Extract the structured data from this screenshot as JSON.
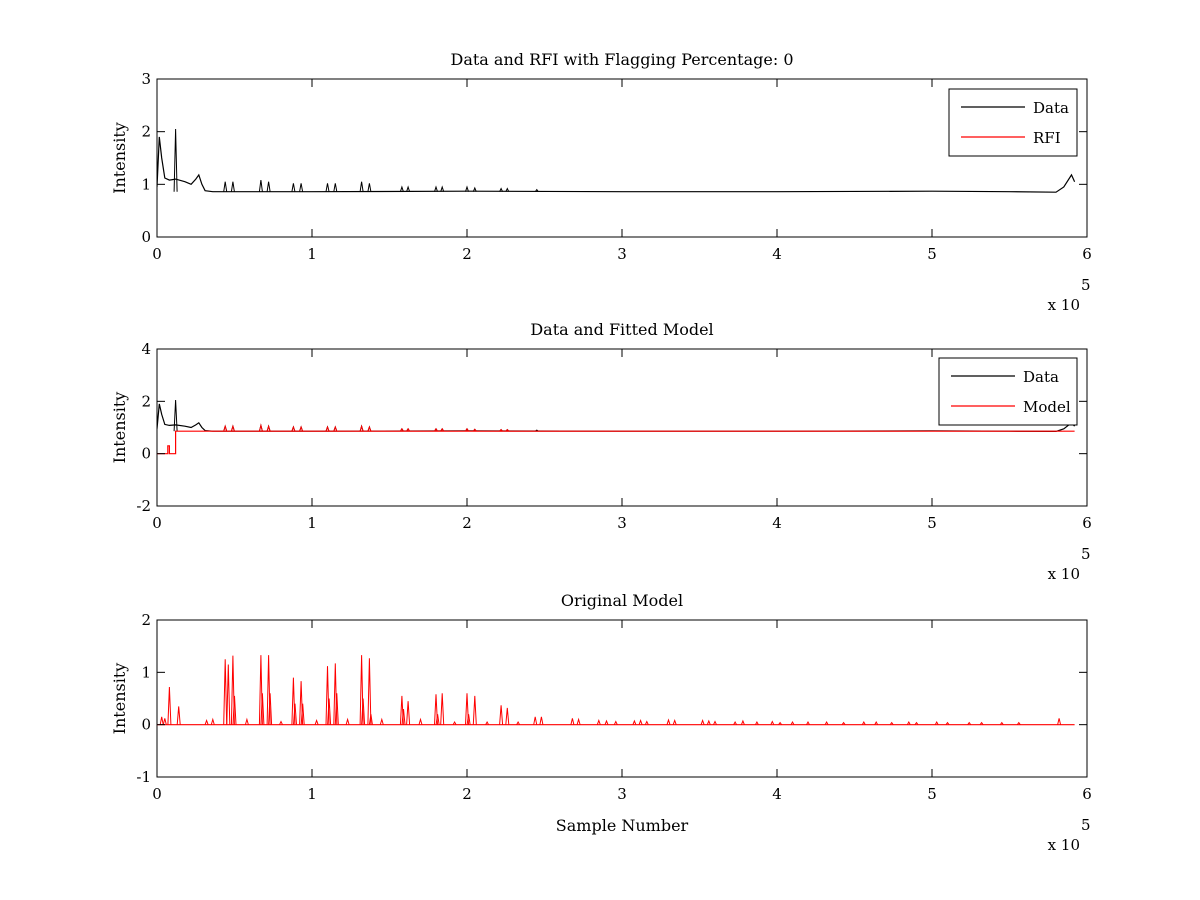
{
  "chart_data": [
    {
      "type": "line",
      "title": "Data and RFI with Flagging Percentage: 0",
      "xlabel": "",
      "ylabel": "Intensity",
      "xlim": [
        0,
        600000
      ],
      "ylim": [
        0,
        3
      ],
      "xticks": [
        "0",
        "1",
        "2",
        "3",
        "4",
        "5",
        "6"
      ],
      "yticks": [
        "0",
        "1",
        "2",
        "3"
      ],
      "x_multiplier": {
        "prefix": "x 10",
        "power": "5"
      },
      "legend_position": "top-right",
      "series": [
        {
          "name": "Data",
          "color": "#000000",
          "baseline": 0.86,
          "points": [
            [
              0,
              0.95
            ],
            [
              1500,
              1.9
            ],
            [
              3000,
              1.5
            ],
            [
              5000,
              1.12
            ],
            [
              8000,
              1.08
            ],
            [
              12000,
              1.1
            ],
            [
              18000,
              1.05
            ],
            [
              22000,
              1.0
            ],
            [
              25000,
              1.1
            ],
            [
              27000,
              1.18
            ],
            [
              29000,
              1.0
            ],
            [
              31000,
              0.88
            ],
            [
              36000,
              0.86
            ],
            [
              45000,
              0.86
            ],
            [
              100000,
              0.86
            ],
            [
              200000,
              0.87
            ],
            [
              300000,
              0.86
            ],
            [
              400000,
              0.86
            ],
            [
              500000,
              0.87
            ],
            [
              550000,
              0.86
            ],
            [
              580000,
              0.85
            ],
            [
              585000,
              0.95
            ],
            [
              590000,
              1.18
            ],
            [
              592000,
              1.05
            ]
          ],
          "spikes": [
            [
              12000,
              2.05
            ],
            [
              44000,
              1.05
            ],
            [
              49000,
              1.05
            ],
            [
              67000,
              1.08
            ],
            [
              72000,
              1.05
            ],
            [
              88000,
              1.02
            ],
            [
              93000,
              1.02
            ],
            [
              110000,
              1.02
            ],
            [
              115000,
              1.02
            ],
            [
              132000,
              1.05
            ],
            [
              137000,
              1.02
            ],
            [
              158000,
              0.95
            ],
            [
              162000,
              0.95
            ],
            [
              180000,
              0.95
            ],
            [
              184000,
              0.95
            ],
            [
              200000,
              0.95
            ],
            [
              205000,
              0.93
            ],
            [
              222000,
              0.92
            ],
            [
              226000,
              0.92
            ],
            [
              245000,
              0.9
            ]
          ]
        },
        {
          "name": "RFI",
          "color": "#ff0000",
          "points": []
        }
      ]
    },
    {
      "type": "line",
      "title": "Data and Fitted Model",
      "xlabel": "",
      "ylabel": "Intensity",
      "xlim": [
        0,
        600000
      ],
      "ylim": [
        -2,
        4
      ],
      "xticks": [
        "0",
        "1",
        "2",
        "3",
        "4",
        "5",
        "6"
      ],
      "yticks": [
        "-2",
        "0",
        "2",
        "4"
      ],
      "x_multiplier": {
        "prefix": "x 10",
        "power": "5"
      },
      "legend_position": "top-right",
      "series": [
        {
          "name": "Data",
          "color": "#000000",
          "baseline": 0.86,
          "points": [
            [
              0,
              0.95
            ],
            [
              1500,
              1.9
            ],
            [
              3000,
              1.5
            ],
            [
              5000,
              1.12
            ],
            [
              8000,
              1.08
            ],
            [
              12000,
              1.1
            ],
            [
              18000,
              1.05
            ],
            [
              22000,
              1.0
            ],
            [
              25000,
              1.1
            ],
            [
              27000,
              1.18
            ],
            [
              29000,
              1.0
            ],
            [
              31000,
              0.88
            ],
            [
              36000,
              0.86
            ],
            [
              45000,
              0.86
            ],
            [
              100000,
              0.86
            ],
            [
              200000,
              0.87
            ],
            [
              300000,
              0.86
            ],
            [
              400000,
              0.86
            ],
            [
              500000,
              0.87
            ],
            [
              550000,
              0.86
            ],
            [
              580000,
              0.85
            ],
            [
              585000,
              0.95
            ],
            [
              590000,
              1.18
            ],
            [
              592000,
              1.05
            ]
          ],
          "spikes": [
            [
              12000,
              2.05
            ],
            [
              44000,
              1.05
            ],
            [
              49000,
              1.05
            ],
            [
              67000,
              1.08
            ],
            [
              72000,
              1.05
            ],
            [
              88000,
              1.02
            ],
            [
              93000,
              1.02
            ],
            [
              110000,
              1.02
            ],
            [
              115000,
              1.02
            ],
            [
              132000,
              1.05
            ],
            [
              137000,
              1.02
            ],
            [
              158000,
              0.95
            ],
            [
              162000,
              0.95
            ],
            [
              180000,
              0.95
            ],
            [
              184000,
              0.95
            ],
            [
              200000,
              0.95
            ],
            [
              205000,
              0.93
            ],
            [
              222000,
              0.92
            ],
            [
              226000,
              0.92
            ],
            [
              245000,
              0.9
            ]
          ]
        },
        {
          "name": "Model",
          "color": "#ff0000",
          "baseline": 0.86,
          "points": [
            [
              0,
              0.0
            ],
            [
              7000,
              0.0
            ],
            [
              7000,
              0.3
            ],
            [
              8000,
              0.3
            ],
            [
              8000,
              0.0
            ],
            [
              12000,
              0.0
            ],
            [
              12000,
              0.86
            ],
            [
              592000,
              0.86
            ]
          ],
          "spikes": [
            [
              44000,
              1.05
            ],
            [
              49000,
              1.05
            ],
            [
              67000,
              1.08
            ],
            [
              72000,
              1.05
            ],
            [
              88000,
              1.02
            ],
            [
              93000,
              1.02
            ],
            [
              110000,
              1.02
            ],
            [
              115000,
              1.02
            ],
            [
              132000,
              1.05
            ],
            [
              137000,
              1.02
            ],
            [
              158000,
              0.95
            ],
            [
              162000,
              0.95
            ],
            [
              180000,
              0.95
            ],
            [
              184000,
              0.95
            ],
            [
              200000,
              0.95
            ],
            [
              205000,
              0.93
            ],
            [
              222000,
              0.92
            ],
            [
              226000,
              0.92
            ]
          ]
        }
      ]
    },
    {
      "type": "line",
      "title": "Original Model",
      "xlabel": "Sample Number",
      "ylabel": "Intensity",
      "xlim": [
        0,
        600000
      ],
      "ylim": [
        -1,
        2
      ],
      "xticks": [
        "0",
        "1",
        "2",
        "3",
        "4",
        "5",
        "6"
      ],
      "yticks": [
        "-1",
        "0",
        "1",
        "2"
      ],
      "x_multiplier": {
        "prefix": "x 10",
        "power": "5"
      },
      "series": [
        {
          "name": "Original Model",
          "color": "#ff0000",
          "baseline": 0.0,
          "points": [
            [
              0,
              0.0
            ],
            [
              592000,
              0.0
            ]
          ],
          "spikes": [
            [
              3000,
              0.15
            ],
            [
              5000,
              0.12
            ],
            [
              8000,
              0.72
            ],
            [
              14000,
              0.35
            ],
            [
              32000,
              0.08
            ],
            [
              36000,
              0.1
            ],
            [
              44000,
              1.25
            ],
            [
              46000,
              1.15
            ],
            [
              49000,
              1.32
            ],
            [
              50000,
              0.55
            ],
            [
              58000,
              0.1
            ],
            [
              67000,
              1.33
            ],
            [
              68000,
              0.6
            ],
            [
              72000,
              1.33
            ],
            [
              73000,
              0.6
            ],
            [
              80000,
              0.06
            ],
            [
              88000,
              0.9
            ],
            [
              89000,
              0.4
            ],
            [
              93000,
              0.83
            ],
            [
              94000,
              0.4
            ],
            [
              103000,
              0.08
            ],
            [
              110000,
              1.12
            ],
            [
              111000,
              0.5
            ],
            [
              115000,
              1.17
            ],
            [
              116000,
              0.6
            ],
            [
              123000,
              0.1
            ],
            [
              132000,
              1.33
            ],
            [
              133000,
              0.5
            ],
            [
              137000,
              1.27
            ],
            [
              138000,
              0.2
            ],
            [
              145000,
              0.1
            ],
            [
              158000,
              0.55
            ],
            [
              159000,
              0.3
            ],
            [
              162000,
              0.45
            ],
            [
              170000,
              0.1
            ],
            [
              180000,
              0.58
            ],
            [
              181000,
              0.2
            ],
            [
              184000,
              0.6
            ],
            [
              192000,
              0.05
            ],
            [
              200000,
              0.6
            ],
            [
              201000,
              0.2
            ],
            [
              205000,
              0.55
            ],
            [
              213000,
              0.05
            ],
            [
              222000,
              0.37
            ],
            [
              226000,
              0.32
            ],
            [
              233000,
              0.05
            ],
            [
              244000,
              0.15
            ],
            [
              248000,
              0.15
            ],
            [
              268000,
              0.12
            ],
            [
              272000,
              0.1
            ],
            [
              285000,
              0.08
            ],
            [
              290000,
              0.07
            ],
            [
              296000,
              0.06
            ],
            [
              308000,
              0.07
            ],
            [
              312000,
              0.08
            ],
            [
              316000,
              0.06
            ],
            [
              330000,
              0.09
            ],
            [
              334000,
              0.08
            ],
            [
              352000,
              0.08
            ],
            [
              356000,
              0.07
            ],
            [
              360000,
              0.06
            ],
            [
              373000,
              0.05
            ],
            [
              378000,
              0.07
            ],
            [
              387000,
              0.05
            ],
            [
              397000,
              0.06
            ],
            [
              402000,
              0.04
            ],
            [
              410000,
              0.05
            ],
            [
              420000,
              0.05
            ],
            [
              432000,
              0.05
            ],
            [
              443000,
              0.04
            ],
            [
              456000,
              0.05
            ],
            [
              464000,
              0.05
            ],
            [
              474000,
              0.04
            ],
            [
              485000,
              0.05
            ],
            [
              490000,
              0.04
            ],
            [
              503000,
              0.05
            ],
            [
              510000,
              0.04
            ],
            [
              524000,
              0.04
            ],
            [
              532000,
              0.04
            ],
            [
              545000,
              0.04
            ],
            [
              556000,
              0.04
            ],
            [
              582000,
              0.12
            ]
          ]
        }
      ]
    }
  ]
}
